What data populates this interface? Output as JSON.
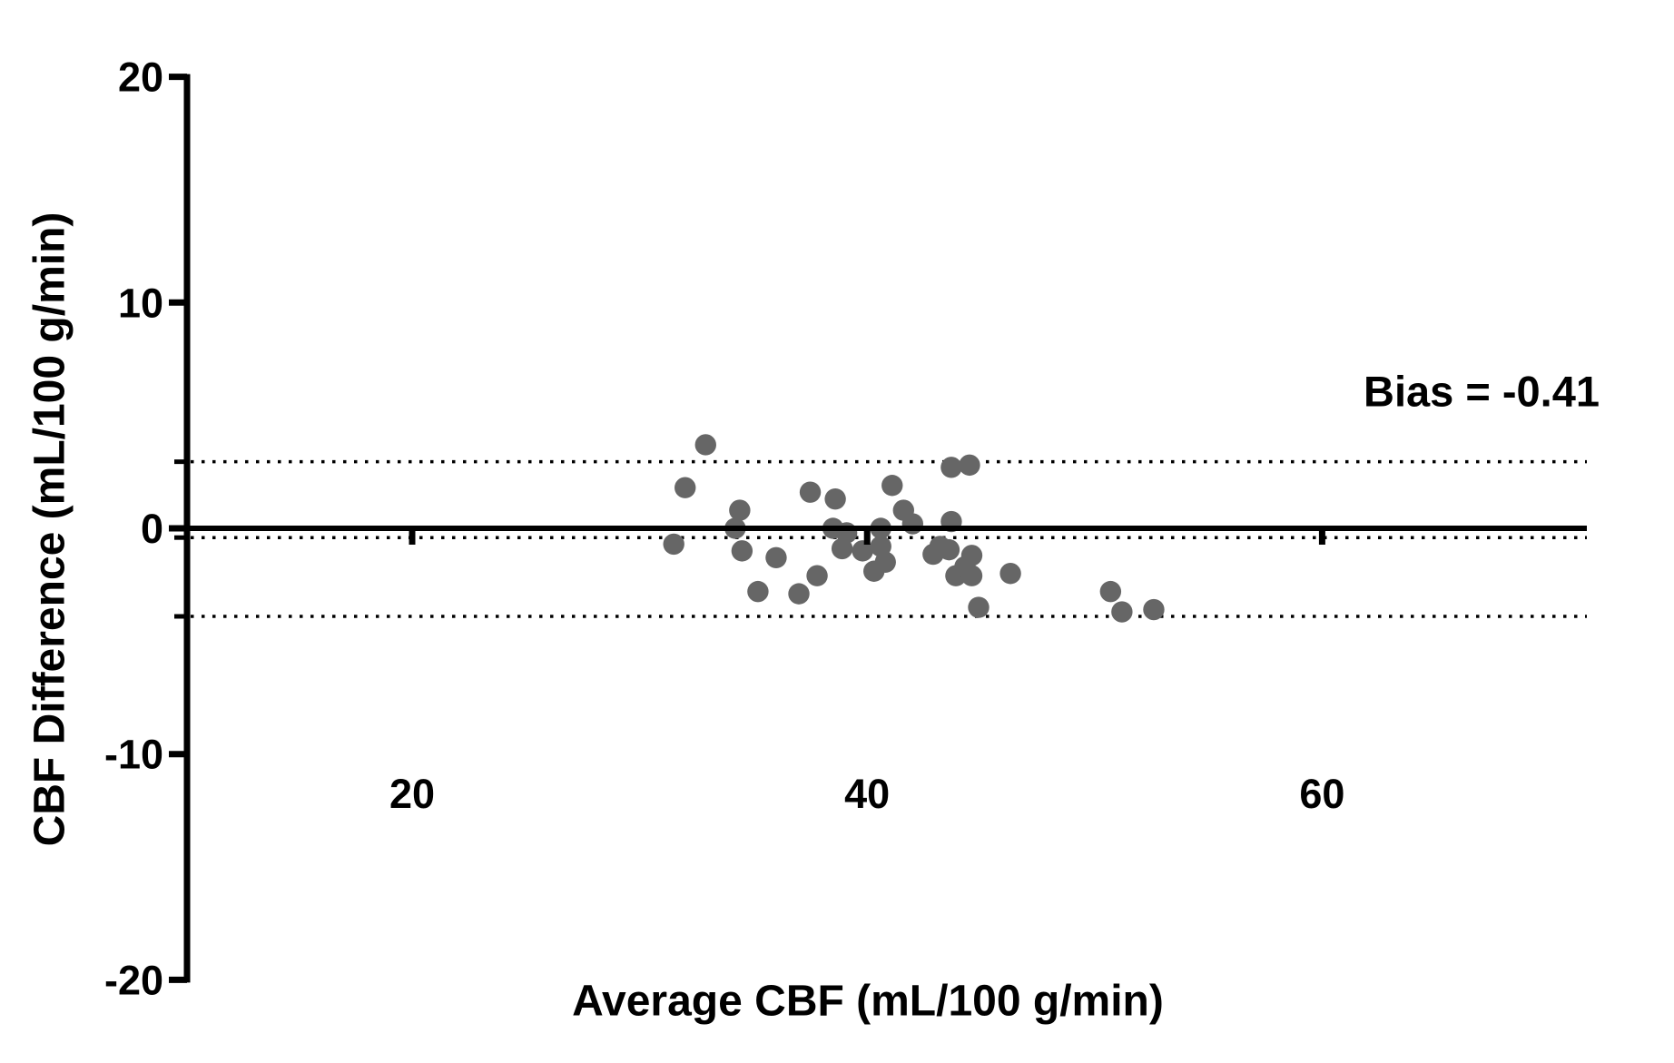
{
  "chart_data": {
    "type": "scatter",
    "title": "",
    "xlabel": "Average CBF (mL/100 g/min)",
    "ylabel": "CBF Difference (mL/100 g/min)",
    "annotation": "Bias = -0.41",
    "bias": -0.41,
    "upper_loa": 2.95,
    "lower_loa": -3.9,
    "zero_line": 0,
    "xlim": [
      10,
      72
    ],
    "ylim": [
      -20,
      20
    ],
    "x_ticks": [
      20,
      40,
      60
    ],
    "x_tick_labels": [
      "20",
      "40",
      "60"
    ],
    "y_ticks": [
      20,
      10,
      0,
      -10,
      -20
    ],
    "y_tick_labels": [
      "20",
      "10",
      "0",
      "-10",
      "-20"
    ],
    "legend": "none",
    "grid": "off",
    "marker_color": "#666666",
    "line_color": "#000000",
    "points": [
      [
        31.5,
        -0.7
      ],
      [
        32.0,
        1.8
      ],
      [
        32.9,
        3.7
      ],
      [
        34.2,
        0.0
      ],
      [
        34.4,
        0.8
      ],
      [
        34.5,
        -1.0
      ],
      [
        35.2,
        -2.8
      ],
      [
        36.0,
        -1.3
      ],
      [
        37.0,
        -2.9
      ],
      [
        37.5,
        1.6
      ],
      [
        37.8,
        -2.1
      ],
      [
        38.5,
        0.0
      ],
      [
        38.6,
        1.3
      ],
      [
        38.9,
        -0.9
      ],
      [
        39.1,
        -0.2
      ],
      [
        39.8,
        -1.0
      ],
      [
        40.3,
        -1.9
      ],
      [
        40.6,
        0.0
      ],
      [
        40.6,
        -0.8
      ],
      [
        40.8,
        -1.5
      ],
      [
        41.1,
        1.9
      ],
      [
        41.6,
        0.8
      ],
      [
        42.0,
        0.2
      ],
      [
        42.9,
        -1.15
      ],
      [
        43.2,
        -0.8
      ],
      [
        43.6,
        -0.95
      ],
      [
        43.7,
        0.3
      ],
      [
        43.7,
        2.7
      ],
      [
        44.5,
        2.8
      ],
      [
        43.9,
        -2.1
      ],
      [
        44.3,
        -1.7
      ],
      [
        44.6,
        -2.1
      ],
      [
        44.6,
        -1.2
      ],
      [
        44.9,
        -3.5
      ],
      [
        46.3,
        -2.0
      ],
      [
        50.7,
        -2.8
      ],
      [
        51.2,
        -3.7
      ],
      [
        52.6,
        -3.6
      ]
    ]
  }
}
